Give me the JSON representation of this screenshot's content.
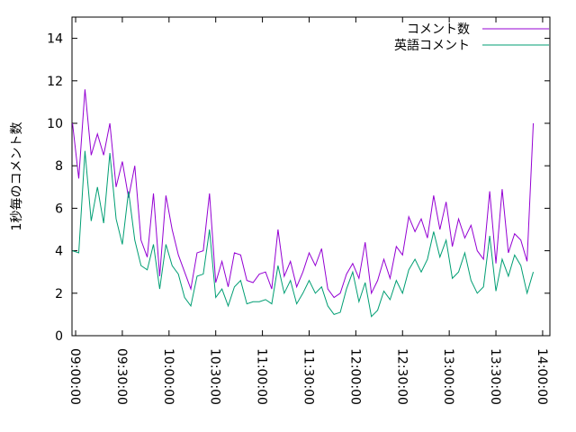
{
  "chart_data": {
    "type": "line",
    "ylabel": "1秒毎のコメント数",
    "x": [
      "08:58:00",
      "09:02:00",
      "09:06:00",
      "09:10:00",
      "09:14:00",
      "09:18:00",
      "09:22:00",
      "09:26:00",
      "09:30:00",
      "09:34:00",
      "09:38:00",
      "09:42:00",
      "09:46:00",
      "09:50:00",
      "09:54:00",
      "09:58:00",
      "10:02:00",
      "10:06:00",
      "10:10:00",
      "10:14:00",
      "10:18:00",
      "10:22:00",
      "10:26:00",
      "10:30:00",
      "10:34:00",
      "10:38:00",
      "10:42:00",
      "10:46:00",
      "10:50:00",
      "10:54:00",
      "10:58:00",
      "11:02:00",
      "11:06:00",
      "11:10:00",
      "11:14:00",
      "11:18:00",
      "11:22:00",
      "11:26:00",
      "11:30:00",
      "11:34:00",
      "11:38:00",
      "11:42:00",
      "11:46:00",
      "11:50:00",
      "11:54:00",
      "11:58:00",
      "12:02:00",
      "12:06:00",
      "12:10:00",
      "12:14:00",
      "12:18:00",
      "12:22:00",
      "12:26:00",
      "12:30:00",
      "12:34:00",
      "12:38:00",
      "12:42:00",
      "12:46:00",
      "12:50:00",
      "12:54:00",
      "12:58:00",
      "13:02:00",
      "13:06:00",
      "13:10:00",
      "13:14:00",
      "13:18:00",
      "13:22:00",
      "13:26:00",
      "13:30:00",
      "13:34:00",
      "13:38:00",
      "13:42:00",
      "13:46:00",
      "13:50:00",
      "13:54:00"
    ],
    "series": [
      {
        "name": "コメント数",
        "color": "#9400d3",
        "values": [
          10.0,
          7.4,
          11.6,
          8.5,
          9.5,
          8.5,
          10.0,
          7.0,
          8.2,
          6.5,
          8.0,
          4.5,
          3.7,
          6.7,
          2.8,
          6.6,
          5.0,
          3.8,
          3.0,
          2.2,
          3.9,
          4.0,
          6.7,
          2.5,
          3.5,
          2.3,
          3.9,
          3.8,
          2.6,
          2.5,
          2.9,
          3.0,
          2.2,
          5.0,
          2.8,
          3.5,
          2.3,
          3.0,
          3.9,
          3.3,
          4.1,
          2.2,
          1.8,
          2.0,
          2.9,
          3.4,
          2.7,
          4.4,
          2.0,
          2.6,
          3.6,
          2.7,
          4.2,
          3.8,
          5.6,
          4.9,
          5.5,
          4.6,
          6.6,
          5.0,
          6.3,
          4.2,
          5.5,
          4.6,
          5.2,
          4.0,
          3.6,
          6.8,
          3.4,
          6.9,
          3.9,
          4.8,
          4.5,
          3.5,
          10.0
        ]
      },
      {
        "name": "英語コメント",
        "color": "#009e73",
        "values": [
          4.0,
          3.9,
          8.7,
          5.4,
          7.0,
          5.3,
          8.6,
          5.5,
          4.3,
          6.8,
          4.5,
          3.3,
          3.1,
          4.3,
          2.2,
          4.3,
          3.3,
          2.9,
          1.8,
          1.4,
          2.8,
          2.9,
          5.0,
          1.8,
          2.2,
          1.4,
          2.3,
          2.6,
          1.5,
          1.6,
          1.6,
          1.7,
          1.5,
          3.3,
          2.0,
          2.6,
          1.5,
          2.0,
          2.6,
          2.0,
          2.3,
          1.4,
          1.0,
          1.1,
          2.2,
          3.0,
          1.6,
          2.5,
          0.9,
          1.2,
          2.1,
          1.7,
          2.6,
          2.0,
          3.1,
          3.6,
          3.0,
          3.6,
          4.9,
          3.7,
          4.5,
          2.7,
          3.0,
          3.9,
          2.6,
          2.0,
          2.3,
          4.7,
          2.1,
          3.6,
          2.8,
          3.8,
          3.3,
          2.0,
          3.0
        ]
      }
    ],
    "xlim": [
      "08:57:40",
      "14:04:40"
    ],
    "xticks": [
      "09:00:00",
      "09:30:00",
      "10:00:00",
      "10:30:00",
      "11:00:00",
      "11:30:00",
      "12:00:00",
      "12:30:00",
      "13:00:00",
      "13:30:00",
      "14:00:00"
    ],
    "ylim": [
      0,
      15
    ],
    "yticks": [
      0,
      2,
      4,
      6,
      8,
      10,
      12,
      14
    ],
    "legend": "top-right"
  }
}
